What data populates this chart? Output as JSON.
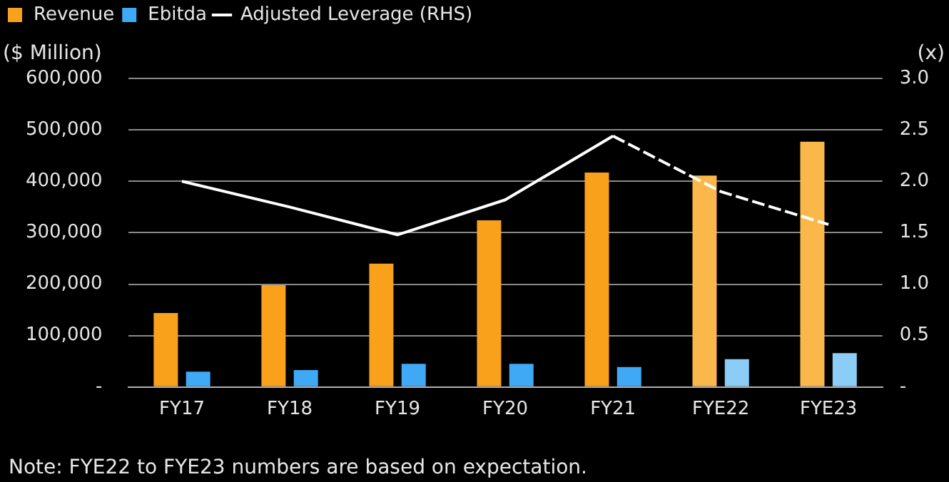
{
  "chart_data": {
    "type": "bar",
    "categories": [
      "FY17",
      "FY18",
      "FY19",
      "FY20",
      "FY21",
      "FYE22",
      "FYE23"
    ],
    "series": [
      {
        "name": "Revenue",
        "color": "#f9a11b",
        "colors": [
          "#f9a11b",
          "#f9a11b",
          "#f9a11b",
          "#f9a11b",
          "#f9a11b",
          "#fbb84a",
          "#fbb84a"
        ],
        "values": [
          144000,
          198000,
          240000,
          324000,
          417000,
          411000,
          477000
        ]
      },
      {
        "name": "Ebitda",
        "color": "#3fa9f5",
        "colors": [
          "#3fa9f5",
          "#3fa9f5",
          "#3fa9f5",
          "#3fa9f5",
          "#3fa9f5",
          "#8ccdf8",
          "#8ccdf8"
        ],
        "values": [
          30000,
          33000,
          45000,
          45000,
          39000,
          54000,
          66000
        ]
      },
      {
        "name": "Adjusted Leverage (RHS)",
        "type": "line",
        "axis": "y2",
        "color": "#ffffff",
        "line_style": "solid",
        "values": [
          2.0,
          1.75,
          1.48,
          1.82,
          2.44,
          null,
          null
        ]
      },
      {
        "type": "line",
        "axis": "y2",
        "color": "#ffffff",
        "line_style": "dashed",
        "values": [
          null,
          null,
          null,
          null,
          2.44,
          1.9,
          1.58
        ]
      }
    ],
    "ylabel": "($ Million)",
    "y2label": "(x)",
    "ylim": [
      0,
      600000
    ],
    "yticks": [
      {
        "value": 0,
        "label": "-"
      },
      {
        "value": 100000,
        "label": "100,000"
      },
      {
        "value": 200000,
        "label": "200,000"
      },
      {
        "value": 300000,
        "label": "300,000"
      },
      {
        "value": 400000,
        "label": "400,000"
      },
      {
        "value": 500000,
        "label": "500,000"
      },
      {
        "value": 600000,
        "label": "600,000"
      }
    ],
    "y2lim": [
      0,
      3
    ],
    "y2ticks": [
      {
        "value": 0,
        "label": "-"
      },
      {
        "value": 0.5,
        "label": "0.5"
      },
      {
        "value": 1,
        "label": "1.0"
      },
      {
        "value": 1.5,
        "label": "1.5"
      },
      {
        "value": 2,
        "label": "2.0"
      },
      {
        "value": 2.5,
        "label": "2.5"
      },
      {
        "value": 3,
        "label": "3.0"
      }
    ],
    "grid": "y",
    "legend": "top left",
    "marker": "none",
    "annotations": [
      "Note: FYE22 to FYE23 numbers are based on expectation."
    ]
  }
}
